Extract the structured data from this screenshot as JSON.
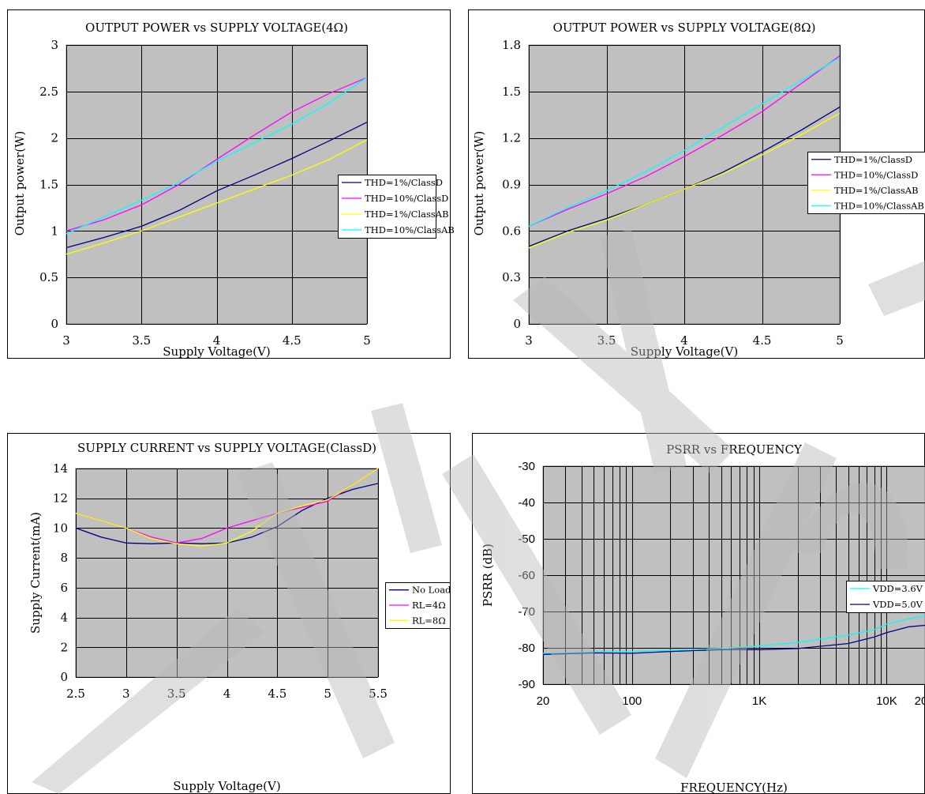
{
  "chart_data": [
    {
      "type": "line",
      "title": "OUTPUT POWER vs SUPPLY VOLTAGE(4Ω)",
      "xlabel": "Supply Voltage(V)",
      "ylabel": "Output power(W)",
      "xlim": [
        3,
        5
      ],
      "ylim": [
        0,
        3
      ],
      "xticks": [
        3,
        3.5,
        4,
        4.5,
        5
      ],
      "xtick_labels": [
        "3",
        "3.5",
        "4",
        "4.5",
        "5"
      ],
      "yticks": [
        0,
        0.5,
        1,
        1.5,
        2,
        2.5,
        3
      ],
      "ytick_labels": [
        "0",
        "0.5",
        "1",
        "1.5",
        "2",
        "2.5",
        "3"
      ],
      "legend_position": "right",
      "series": [
        {
          "name": "THD=1%/ClassD",
          "color": "#000080",
          "x": [
            3,
            3.25,
            3.5,
            3.75,
            4,
            4.25,
            4.5,
            4.75,
            5
          ],
          "values": [
            0.82,
            0.93,
            1.05,
            1.22,
            1.43,
            1.6,
            1.78,
            1.97,
            2.17
          ]
        },
        {
          "name": "THD=10%/ClassD",
          "color": "#ff00ff",
          "x": [
            3,
            3.25,
            3.5,
            3.75,
            4,
            4.25,
            4.5,
            4.75,
            5
          ],
          "values": [
            1.0,
            1.12,
            1.28,
            1.5,
            1.77,
            2.03,
            2.28,
            2.48,
            2.65
          ]
        },
        {
          "name": "THD=1%/ClassAB",
          "color": "#ffff00",
          "x": [
            3,
            3.25,
            3.5,
            3.75,
            4,
            4.25,
            4.5,
            4.75,
            5
          ],
          "values": [
            0.75,
            0.87,
            1.0,
            1.15,
            1.3,
            1.45,
            1.6,
            1.77,
            1.98
          ]
        },
        {
          "name": "THD=10%/ClassAB",
          "color": "#00ffff",
          "x": [
            3,
            3.25,
            3.5,
            3.75,
            4,
            4.25,
            4.5,
            4.75,
            5
          ],
          "values": [
            0.97,
            1.15,
            1.33,
            1.52,
            1.75,
            1.95,
            2.15,
            2.38,
            2.65
          ]
        }
      ]
    },
    {
      "type": "line",
      "title": "OUTPUT POWER vs SUPPLY VOLTAGE(8Ω)",
      "xlabel": "Supply Voltage(V)",
      "ylabel": "Output power(W)",
      "xlim": [
        3,
        5
      ],
      "ylim": [
        0,
        1.8
      ],
      "xticks": [
        3,
        3.5,
        4,
        4.5,
        5
      ],
      "xtick_labels": [
        "3",
        "3.5",
        "4",
        "4.5",
        "5"
      ],
      "yticks": [
        0,
        0.3,
        0.6,
        0.9,
        1.2,
        1.5,
        1.8
      ],
      "ytick_labels": [
        "0",
        "0.3",
        "0.6",
        "0.9",
        "1.2",
        "1.5",
        "1.8"
      ],
      "legend_position": "right",
      "series": [
        {
          "name": "THD=1%/ClassD",
          "color": "#000080",
          "x": [
            3,
            3.25,
            3.5,
            3.75,
            4,
            4.25,
            4.5,
            4.75,
            5
          ],
          "values": [
            0.5,
            0.6,
            0.68,
            0.77,
            0.87,
            0.98,
            1.11,
            1.25,
            1.4
          ]
        },
        {
          "name": "THD=10%/ClassD",
          "color": "#ff00ff",
          "x": [
            3,
            3.25,
            3.5,
            3.75,
            4,
            4.25,
            4.5,
            4.75,
            5
          ],
          "values": [
            0.63,
            0.74,
            0.84,
            0.95,
            1.08,
            1.22,
            1.37,
            1.55,
            1.73
          ]
        },
        {
          "name": "THD=1%/ClassAB",
          "color": "#ffff00",
          "x": [
            3,
            3.25,
            3.5,
            3.75,
            4,
            4.25,
            4.5,
            4.75,
            5
          ],
          "values": [
            0.49,
            0.59,
            0.67,
            0.77,
            0.87,
            0.97,
            1.09,
            1.22,
            1.36
          ]
        },
        {
          "name": "THD=10%/ClassAB",
          "color": "#00ffff",
          "x": [
            3,
            3.25,
            3.5,
            3.75,
            4,
            4.25,
            4.5,
            4.75,
            5
          ],
          "values": [
            0.63,
            0.75,
            0.86,
            0.98,
            1.12,
            1.27,
            1.42,
            1.57,
            1.72
          ]
        }
      ]
    },
    {
      "type": "line",
      "title": "SUPPLY CURRENT vs SUPPLY VOLTAGE(ClassD)",
      "xlabel": "Supply Voltage(V)",
      "ylabel": "Supply Current(mA)",
      "xlim": [
        2.5,
        5.5
      ],
      "ylim": [
        0,
        14
      ],
      "xticks": [
        2.5,
        3,
        3.5,
        4,
        4.5,
        5,
        5.5
      ],
      "xtick_labels": [
        "2.5",
        "3",
        "3.5",
        "4",
        "4.5",
        "5",
        "5.5"
      ],
      "yticks": [
        0,
        2,
        4,
        6,
        8,
        10,
        12,
        14
      ],
      "ytick_labels": [
        "0",
        "2",
        "4",
        "6",
        "8",
        "10",
        "12",
        "14"
      ],
      "legend_position": "right",
      "series": [
        {
          "name": "No Load",
          "color": "#000080",
          "x": [
            2.5,
            2.75,
            3,
            3.25,
            3.5,
            3.75,
            4,
            4.25,
            4.5,
            4.75,
            5,
            5.25,
            5.5
          ],
          "values": [
            10,
            9.4,
            9.0,
            8.95,
            9.0,
            8.95,
            9.0,
            9.4,
            10.1,
            11.2,
            12.0,
            12.6,
            13.0
          ]
        },
        {
          "name": "RL=4Ω",
          "color": "#ff00ff",
          "x": [
            2.5,
            2.75,
            3,
            3.25,
            3.5,
            3.75,
            4,
            4.25,
            4.5,
            4.75,
            5,
            5.25,
            5.5
          ],
          "values": [
            11.0,
            10.5,
            10.0,
            9.4,
            9.0,
            9.3,
            10.0,
            10.5,
            11.0,
            11.4,
            11.8,
            12.9,
            14.0
          ]
        },
        {
          "name": "RL=8Ω",
          "color": "#ffff00",
          "x": [
            2.5,
            2.75,
            3,
            3.25,
            3.5,
            3.75,
            4,
            4.25,
            4.5,
            4.75,
            5,
            5.25,
            5.5
          ],
          "values": [
            11.0,
            10.5,
            10.0,
            9.3,
            8.95,
            8.8,
            9.0,
            9.8,
            11.0,
            11.5,
            11.9,
            12.9,
            14.0
          ]
        }
      ]
    },
    {
      "type": "line",
      "title": "PSRR vs FREQUENCY",
      "xlabel": "FREQUENCY(Hz)",
      "ylabel": "PSRR (dB)",
      "xscale": "log",
      "xlim": [
        20,
        20000
      ],
      "ylim": [
        -90,
        -30
      ],
      "xticks": [
        20,
        100,
        1000,
        10000,
        20000
      ],
      "xtick_labels": [
        "20",
        "100",
        "1K",
        "10K",
        "20K"
      ],
      "yticks": [
        -90,
        -80,
        -70,
        -60,
        -50,
        -40,
        -30
      ],
      "ytick_labels": [
        "-90",
        "-80",
        "-70",
        "-60",
        "-50",
        "-40",
        "-30"
      ],
      "legend_position": "right",
      "series": [
        {
          "name": "VDD=3.6V",
          "color": "#00ffff",
          "x": [
            20,
            50,
            100,
            200,
            500,
            1000,
            2000,
            5000,
            8000,
            10000,
            15000,
            20000
          ],
          "values": [
            -81.5,
            -81.2,
            -81.0,
            -80.7,
            -80.2,
            -79.5,
            -78.5,
            -76.5,
            -75.0,
            -73.5,
            -72.0,
            -71.2
          ]
        },
        {
          "name": "VDD=5.0V",
          "color": "#000080",
          "x": [
            20,
            50,
            100,
            200,
            500,
            1000,
            2000,
            5000,
            8000,
            10000,
            15000,
            20000
          ],
          "values": [
            -81.8,
            -81.4,
            -81.5,
            -81.0,
            -80.5,
            -80.5,
            -80.2,
            -78.8,
            -77.0,
            -75.8,
            -74.2,
            -73.8
          ]
        }
      ]
    }
  ],
  "watermark": {
    "color": "#b8b8b8"
  }
}
